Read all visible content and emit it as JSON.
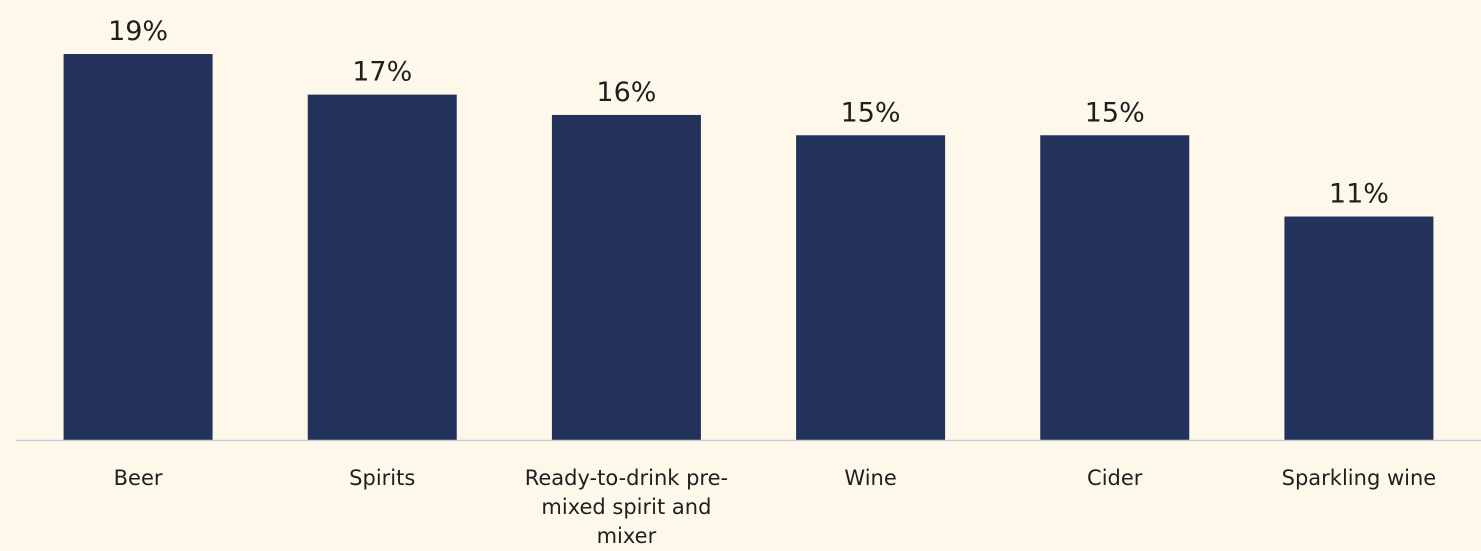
{
  "colors": {
    "background": "#fdf8ea",
    "bar": "#22325a",
    "text": "#1f1f1f",
    "axis": "#c9ced8"
  },
  "chart_data": {
    "type": "bar",
    "categories": [
      "Beer",
      "Spirits",
      "Ready-to-drink pre-mixed spirit and mixer",
      "Wine",
      "Cider",
      "Sparkling wine"
    ],
    "category_label_lines": [
      [
        "Beer"
      ],
      [
        "Spirits"
      ],
      [
        "Ready-to-drink pre-",
        "mixed spirit and",
        "mixer"
      ],
      [
        "Wine"
      ],
      [
        "Cider"
      ],
      [
        "Sparkling wine"
      ]
    ],
    "values": [
      19,
      17,
      16,
      15,
      15,
      11
    ],
    "value_labels": [
      "19%",
      "17%",
      "16%",
      "15%",
      "15%",
      "11%"
    ],
    "title": "",
    "xlabel": "",
    "ylabel": "",
    "ylim": [
      0,
      19
    ],
    "grid": false,
    "legend": "none"
  }
}
